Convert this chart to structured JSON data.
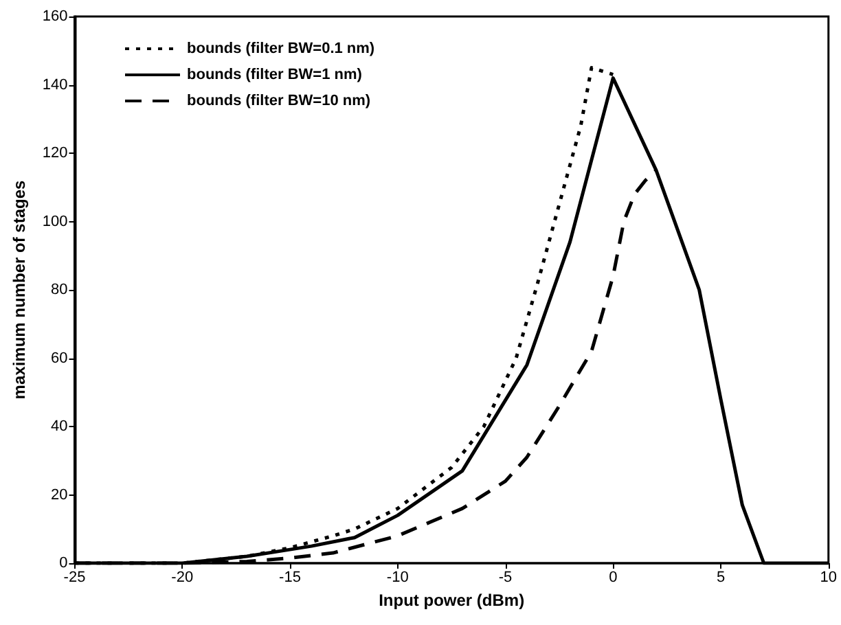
{
  "chart_data": {
    "type": "line",
    "xlabel": "Input power (dBm)",
    "ylabel": "maximum number of stages",
    "xlim": [
      -25,
      10
    ],
    "xticks": [
      -25,
      -20,
      -15,
      -10,
      -5,
      0,
      5,
      10
    ],
    "ylim": [
      0,
      160
    ],
    "yticks": [
      0,
      20,
      40,
      60,
      80,
      100,
      120,
      140,
      160
    ],
    "grid": false,
    "legend": "top left",
    "marker": "none",
    "series": [
      {
        "name": "bounds (filter BW=0.1 nm)",
        "color": "#000000",
        "line_style": "dotted",
        "x": [
          -25,
          -20,
          -17,
          -15,
          -13,
          -12,
          -10,
          -7.5,
          -6,
          -4.5,
          -3.5,
          -2.5,
          -1.5,
          -1,
          0
        ],
        "values": [
          0,
          0,
          2,
          4.5,
          8,
          10,
          16,
          28,
          40,
          60,
          82,
          105,
          128,
          145,
          143
        ]
      },
      {
        "name": "bounds (filter BW=1 nm)",
        "color": "#000000",
        "line_style": "solid",
        "x": [
          -25,
          -20,
          -17,
          -15,
          -14,
          -12,
          -10,
          -7,
          -4,
          -2,
          0,
          2,
          4,
          5,
          6,
          7,
          10
        ],
        "values": [
          0,
          0,
          2,
          4,
          5,
          7.5,
          14,
          27,
          58,
          94,
          142,
          115,
          80,
          48,
          17,
          0,
          0
        ]
      },
      {
        "name": "bounds (filter BW=10 nm)",
        "color": "#000000",
        "line_style": "dashed",
        "x": [
          -25,
          -20,
          -17,
          -15,
          -13,
          -10,
          -7,
          -5,
          -4,
          -2.5,
          -1,
          0,
          0.5,
          1,
          1.5,
          2
        ],
        "values": [
          0,
          0,
          0.5,
          1.5,
          3,
          8,
          16,
          24,
          31,
          46,
          62,
          84,
          100,
          108,
          112,
          115
        ]
      }
    ]
  }
}
